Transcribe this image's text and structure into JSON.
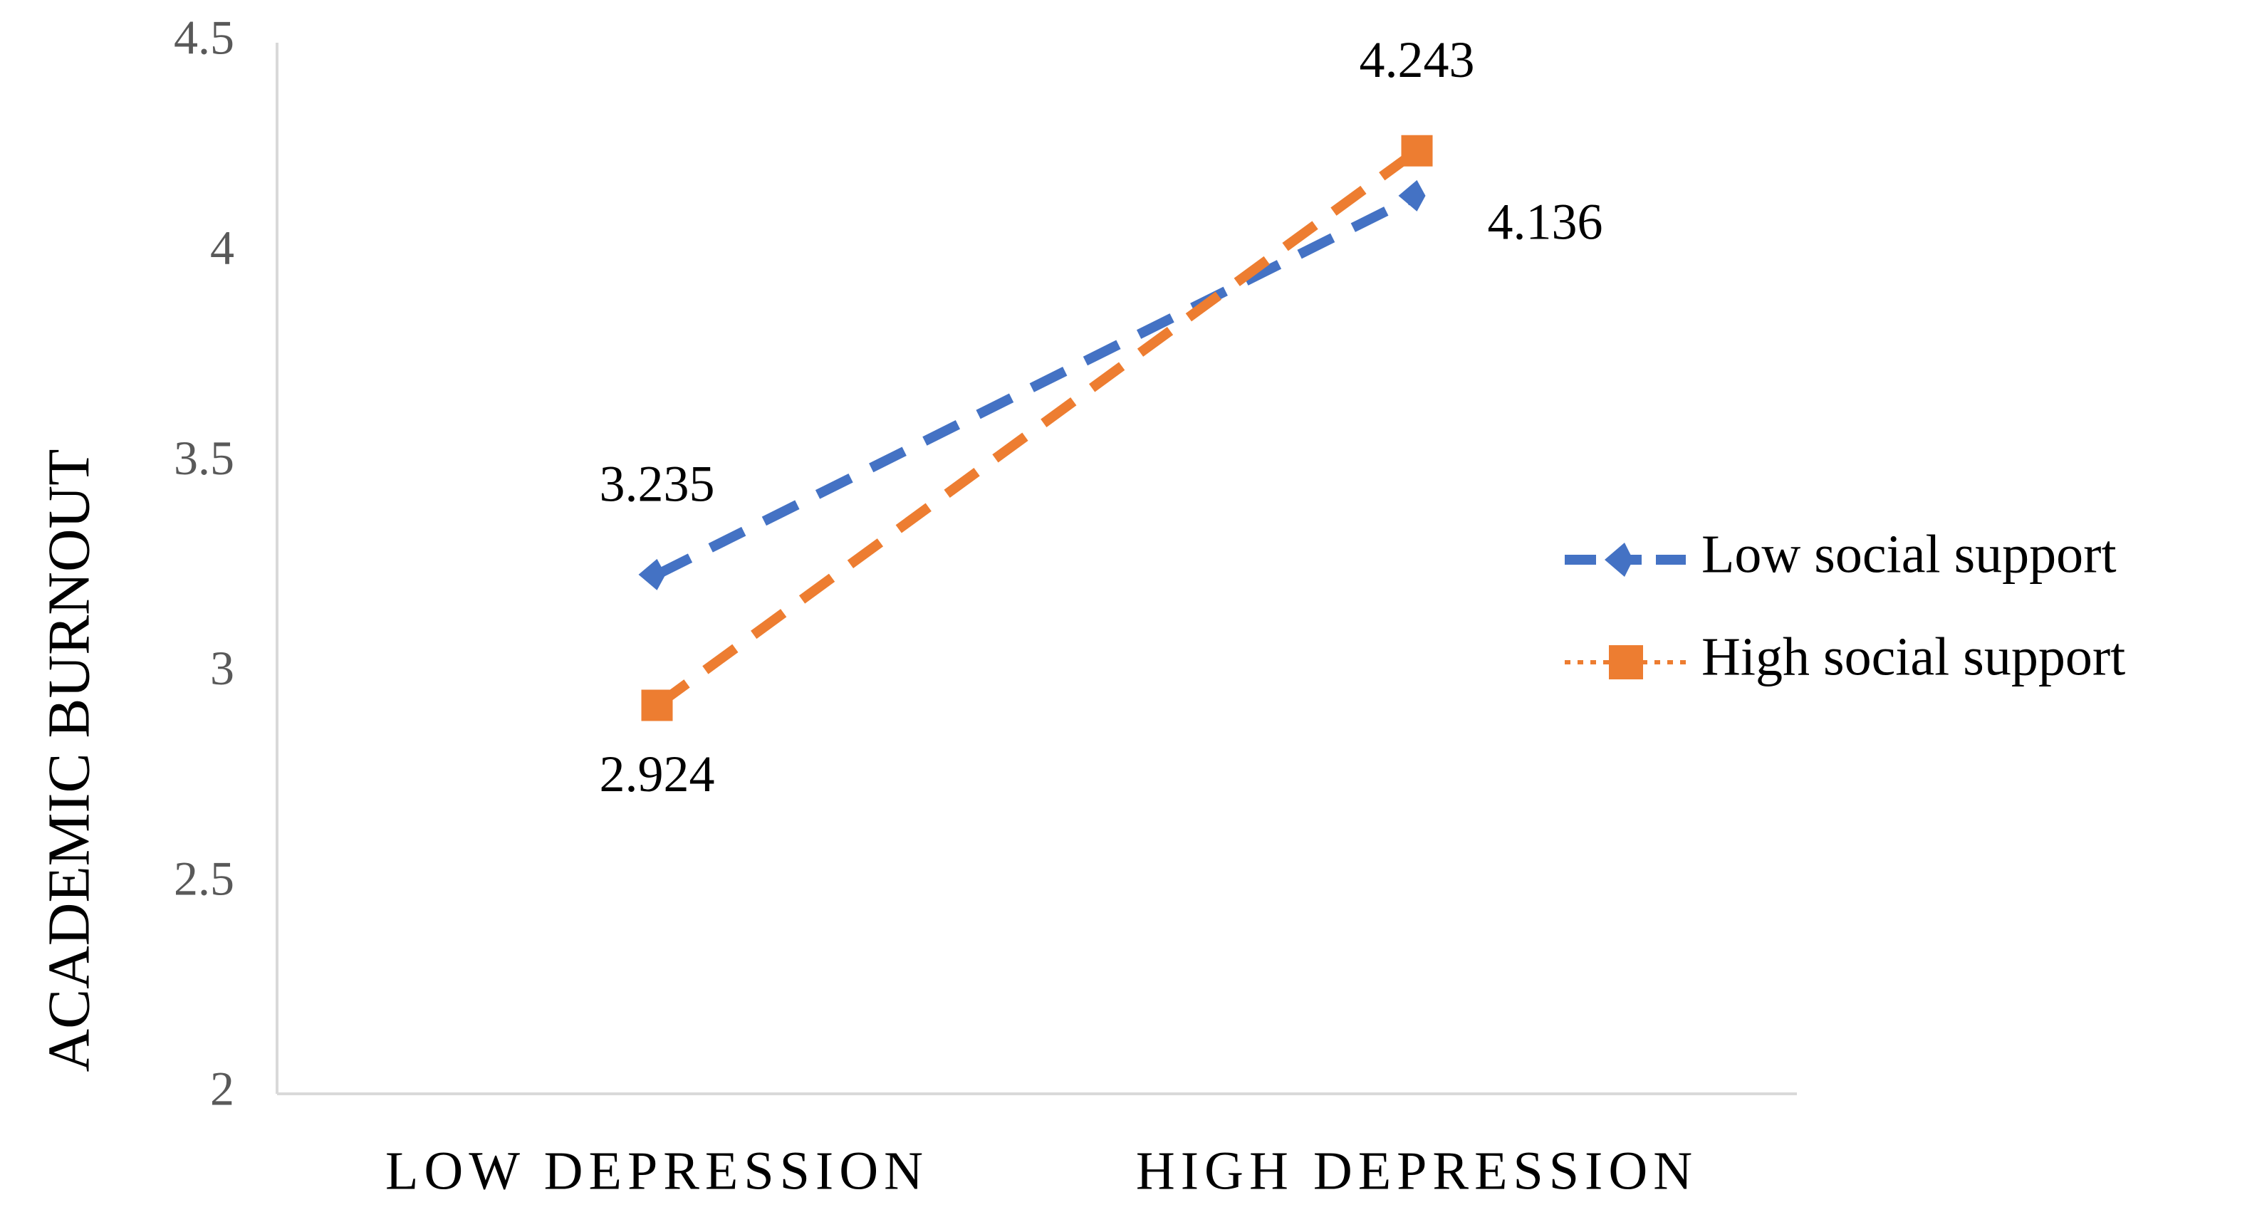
{
  "chart_data": {
    "type": "line",
    "y_label": "ACADEMIC BURNOUT",
    "categories": [
      "LOW DEPRESSION",
      "HIGH DEPRESSION"
    ],
    "series": [
      {
        "name": "Low social support",
        "color": "#4472c4",
        "values": [
          3.235,
          4.136
        ]
      },
      {
        "name": "High social support",
        "color": "#ed7d31",
        "values": [
          2.924,
          4.243
        ]
      }
    ],
    "ylim": [
      2,
      4.5
    ],
    "yticks": [
      2,
      2.5,
      3,
      3.5,
      4,
      4.5
    ],
    "grid": false,
    "legend": "right",
    "data_labels": true
  }
}
